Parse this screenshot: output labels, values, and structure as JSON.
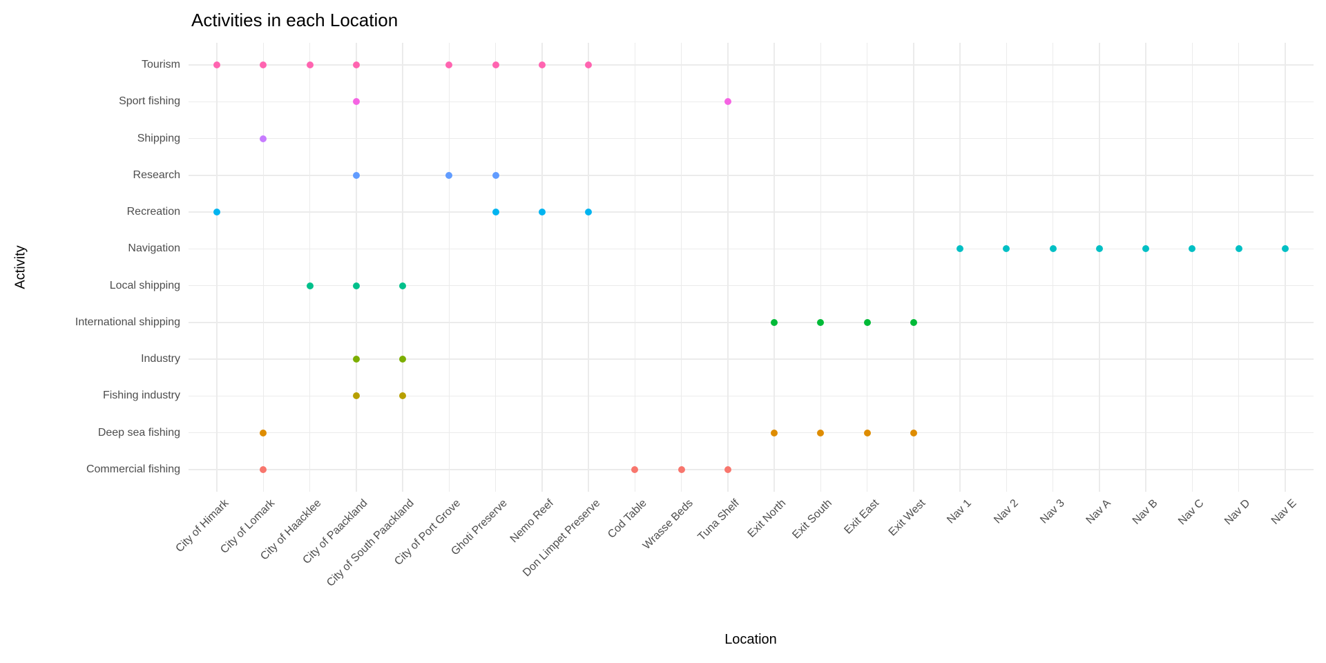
{
  "chart_data": {
    "type": "scatter",
    "title": "Activities in each Location",
    "xlabel": "Location",
    "ylabel": "Activity",
    "legend": "none",
    "grid": "major gridlines both axes, light grey on white panel",
    "x_categories": [
      "City of Himark",
      "City of Lomark",
      "City of Haacklee",
      "City of Paackland",
      "City of South Paackland",
      "City of Port Grove",
      "Ghoti Preserve",
      "Nemo Reef",
      "Don Limpet Preserve",
      "Cod Table",
      "Wrasse Beds",
      "Tuna Shelf",
      "Exit North",
      "Exit South",
      "Exit East",
      "Exit West",
      "Nav 1",
      "Nav 2",
      "Nav 3",
      "Nav A",
      "Nav B",
      "Nav C",
      "Nav D",
      "Nav E"
    ],
    "y_categories_top_to_bottom": [
      "Tourism",
      "Sport fishing",
      "Shipping",
      "Research",
      "Recreation",
      "Navigation",
      "Local shipping",
      "International shipping",
      "Industry",
      "Fishing industry",
      "Deep sea fishing",
      "Commercial fishing"
    ],
    "series": [
      {
        "name": "Tourism",
        "color": "#FF64B0",
        "locations": [
          "City of Himark",
          "City of Lomark",
          "City of Haacklee",
          "City of Paackland",
          "City of Port Grove",
          "Ghoti Preserve",
          "Nemo Reef",
          "Don Limpet Preserve"
        ]
      },
      {
        "name": "Sport fishing",
        "color": "#F564E3",
        "locations": [
          "City of Paackland",
          "Tuna Shelf"
        ]
      },
      {
        "name": "Shipping",
        "color": "#C77CFF",
        "locations": [
          "City of Lomark"
        ]
      },
      {
        "name": "Research",
        "color": "#619CFF",
        "locations": [
          "City of Paackland",
          "City of Port Grove",
          "Ghoti Preserve"
        ]
      },
      {
        "name": "Recreation",
        "color": "#00B4F0",
        "locations": [
          "City of Himark",
          "Ghoti Preserve",
          "Nemo Reef",
          "Don Limpet Preserve"
        ]
      },
      {
        "name": "Navigation",
        "color": "#00BFC4",
        "locations": [
          "Nav 1",
          "Nav 2",
          "Nav 3",
          "Nav A",
          "Nav B",
          "Nav C",
          "Nav D",
          "Nav E"
        ]
      },
      {
        "name": "Local shipping",
        "color": "#00C08B",
        "locations": [
          "City of Haacklee",
          "City of Paackland",
          "City of South Paackland"
        ]
      },
      {
        "name": "International shipping",
        "color": "#00BA38",
        "locations": [
          "Exit North",
          "Exit South",
          "Exit East",
          "Exit West"
        ]
      },
      {
        "name": "Industry",
        "color": "#7CAE00",
        "locations": [
          "City of Paackland",
          "City of South Paackland"
        ]
      },
      {
        "name": "Fishing industry",
        "color": "#B79F00",
        "locations": [
          "City of Paackland",
          "City of South Paackland"
        ]
      },
      {
        "name": "Deep sea fishing",
        "color": "#DE8C00",
        "locations": [
          "City of Lomark",
          "Exit North",
          "Exit South",
          "Exit East",
          "Exit West"
        ]
      },
      {
        "name": "Commercial fishing",
        "color": "#F8766D",
        "locations": [
          "City of Lomark",
          "Cod Table",
          "Wrasse Beds",
          "Tuna Shelf"
        ]
      }
    ],
    "colors": {
      "panel_background": "#FFFFFF",
      "gridline": "#EBEBEB",
      "axis_tick_text": "#4D4D4D",
      "title_text": "#000000"
    }
  }
}
